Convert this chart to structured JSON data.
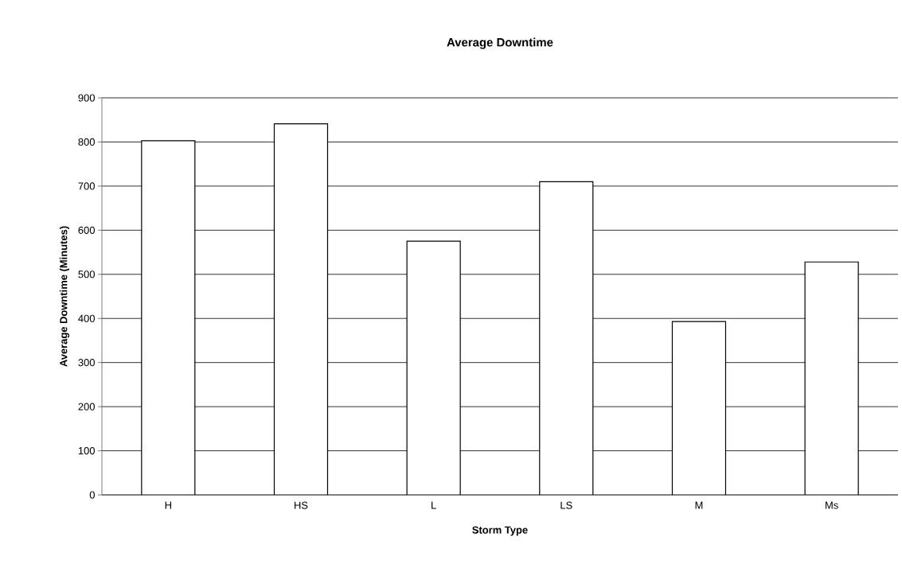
{
  "chart_data": {
    "type": "bar",
    "title": "Average Downtime",
    "xlabel": "Storm Type",
    "ylabel": "Average Downtime (Minutes)",
    "categories": [
      "H",
      "HS",
      "L",
      "LS",
      "M",
      "Ms"
    ],
    "values": [
      803,
      841,
      575,
      710,
      393,
      528
    ],
    "color": "#ffffff",
    "ylim": [
      0,
      900
    ],
    "yticks": [
      0,
      100,
      200,
      300,
      400,
      500,
      600,
      700,
      800,
      900
    ],
    "grid": "y"
  }
}
